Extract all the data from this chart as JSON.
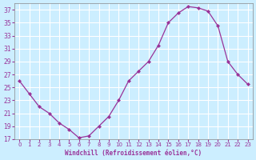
{
  "hours": [
    0,
    1,
    2,
    3,
    4,
    5,
    6,
    7,
    8,
    9,
    10,
    11,
    12,
    13,
    14,
    15,
    16,
    17,
    18,
    19,
    20,
    21,
    22,
    23
  ],
  "values": [
    26,
    24,
    22,
    21,
    19.5,
    18.5,
    17.2,
    17.5,
    19,
    20.5,
    23,
    26,
    27.5,
    29,
    31.5,
    35,
    36.5,
    37.5,
    37.3,
    36.8,
    34.5,
    29,
    27,
    25.5
  ],
  "line_color": "#993399",
  "marker": "D",
  "marker_size": 2.0,
  "bg_color": "#cceeff",
  "grid_color": "#ffffff",
  "tick_label_color": "#993399",
  "xlabel": "Windchill (Refroidissement éolien,°C)",
  "xlabel_color": "#993399",
  "ylim": [
    17,
    38
  ],
  "xlim": [
    -0.5,
    23.5
  ],
  "yticks": [
    17,
    19,
    21,
    23,
    25,
    27,
    29,
    31,
    33,
    35,
    37
  ],
  "xticks": [
    0,
    1,
    2,
    3,
    4,
    5,
    6,
    7,
    8,
    9,
    10,
    11,
    12,
    13,
    14,
    15,
    16,
    17,
    18,
    19,
    20,
    21,
    22,
    23
  ]
}
